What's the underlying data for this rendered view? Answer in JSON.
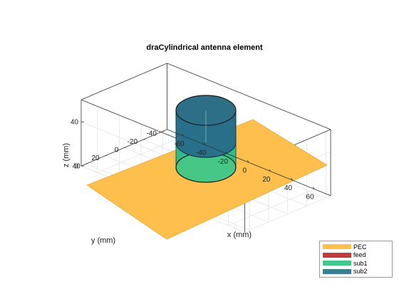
{
  "chart_data": {
    "type": "3d-surface",
    "title": "draCylindrical antenna element",
    "xlabel": "x (mm)",
    "ylabel": "y (mm)",
    "zlabel": "z (mm)",
    "x_ticks": [
      "-60",
      "-40",
      "-20",
      "0",
      "20",
      "40",
      "60"
    ],
    "y_ticks": [
      "-40",
      "-20",
      "0",
      "20",
      "40"
    ],
    "z_ticks": [
      "0",
      "40"
    ],
    "xlim": [
      -75,
      75
    ],
    "ylim": [
      -45,
      45
    ],
    "zlim": [
      0,
      60
    ],
    "grid": true,
    "legend_position": "bottom-right",
    "legend": [
      {
        "label": "PEC",
        "color": "#ffbf4d"
      },
      {
        "label": "feed",
        "color": "#c23b3b"
      },
      {
        "label": "sub1",
        "color": "#40c890"
      },
      {
        "label": "sub2",
        "color": "#3a7e92"
      }
    ]
  }
}
